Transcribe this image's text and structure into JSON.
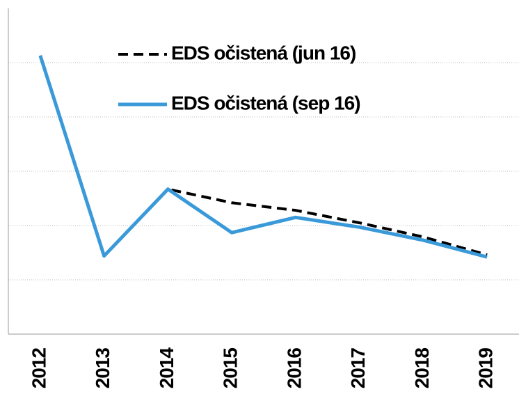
{
  "chart_data": {
    "type": "line",
    "categories": [
      "2012",
      "2013",
      "2014",
      "2015",
      "2016",
      "2017",
      "2018",
      "2019"
    ],
    "series": [
      {
        "name": "EDS očistená (jun 16)",
        "color": "#000000",
        "dash": true,
        "values": [
          5.13,
          1.44,
          2.67,
          2.42,
          2.28,
          2.05,
          1.79,
          1.46
        ]
      },
      {
        "name": "EDS očistená (sep 16)",
        "color": "#3a9ad9",
        "dash": false,
        "values": [
          5.13,
          1.44,
          2.67,
          1.87,
          2.15,
          1.97,
          1.73,
          1.42
        ]
      }
    ],
    "ylim": [
      0,
      6
    ],
    "yticks": [
      1,
      2,
      3,
      4,
      5
    ],
    "grid": true
  }
}
